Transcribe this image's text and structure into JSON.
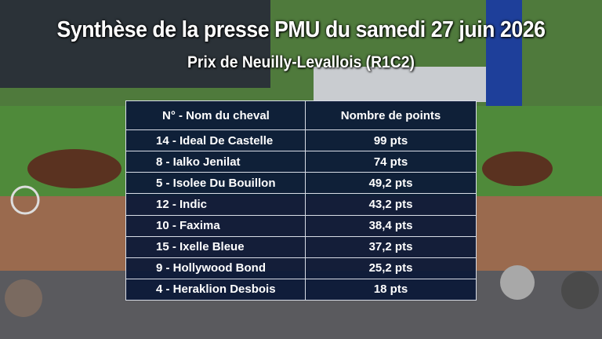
{
  "header": {
    "title": "Synthèse de la presse PMU du samedi 27 juin 2026",
    "subtitle": "Prix de Neuilly-Levallois (R1C2)"
  },
  "table": {
    "columns": [
      "N° - Nom du cheval",
      "Nombre de points"
    ],
    "rows": [
      [
        "14 - Ideal De Castelle",
        "99 pts"
      ],
      [
        "8 - Ialko Jenilat",
        "74 pts"
      ],
      [
        "5 - Isolee Du Bouillon",
        "49,2 pts"
      ],
      [
        "12 - Indic",
        "43,2 pts"
      ],
      [
        "10 - Faxima",
        "38,4 pts"
      ],
      [
        "15 - Ixelle Bleue",
        "37,2 pts"
      ],
      [
        "9 - Hollywood Bond",
        "25,2 pts"
      ],
      [
        "4 - Heraklion Desbois",
        "18 pts"
      ]
    ]
  }
}
